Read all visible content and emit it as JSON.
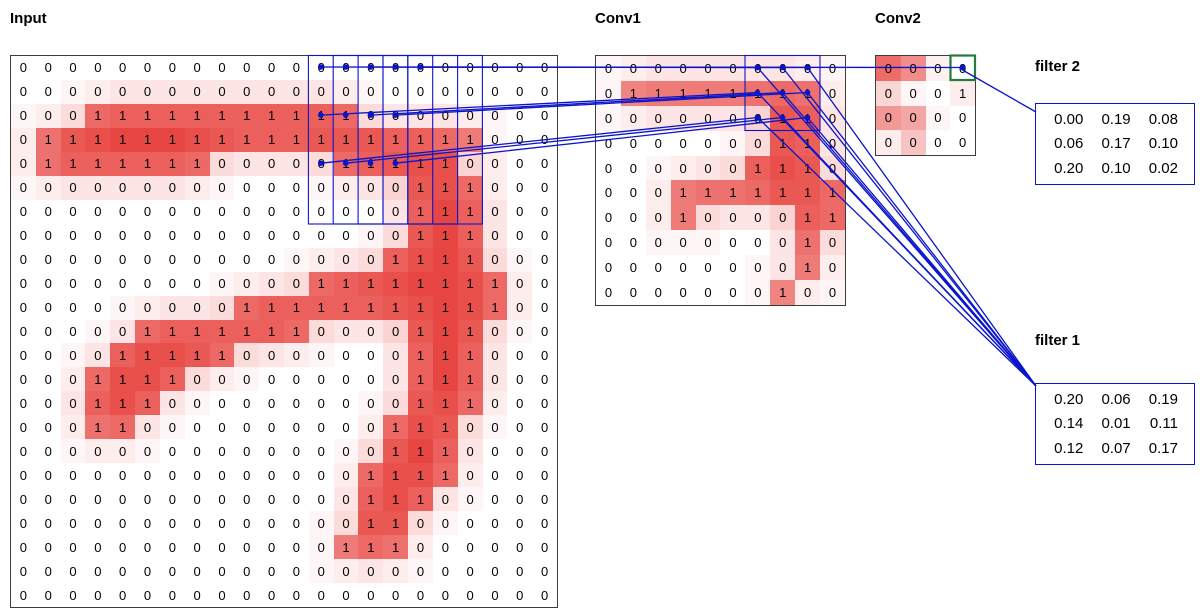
{
  "colors": {
    "accent_blue": "#0a14cc",
    "heat_red": "#e84642",
    "highlight_green": "#267a3e",
    "grid_border": "#3c3c3c"
  },
  "grids": {
    "input": {
      "label": "Input",
      "rows": 23,
      "cols": 22,
      "values": [
        "0000000000000000000000",
        "0000000000000000000000",
        "0001111111111100000000",
        "0111111111111111111000",
        "0111111100000111110000",
        "0000000000000000111000",
        "0000000000000000111000",
        "0000000000000000111000",
        "0000000000000001111000",
        "0000000000001111111100",
        "0000000001111111111100",
        "0000011111110000111000",
        "0000111110000000111000",
        "0001111000000000111000",
        "0001110000000000111000",
        "0001100000000001110000",
        "0000000000000001110000",
        "0000000000000011110000",
        "0000000000000011100000",
        "0000000000000011000000",
        "0000000000000111000000",
        "0000000000000000000000",
        "0000000000000000000000"
      ]
    },
    "conv1": {
      "label": "Conv1",
      "rows": 10,
      "cols": 10,
      "values": [
        "0000000000",
        "0111111110",
        "0000000110",
        "0000000110",
        "0000001110",
        "0001111111",
        "0001000011",
        "0000000010",
        "0000000010",
        "0000000100"
      ]
    },
    "conv2": {
      "label": "Conv2",
      "rows": 4,
      "cols": 4,
      "values": [
        "0000",
        "0001",
        "0000",
        "0000"
      ],
      "shades": [
        [
          0.8,
          0.62,
          0.08,
          0
        ],
        [
          0.22,
          0.05,
          0,
          0.1
        ],
        [
          0.55,
          0.48,
          0.05,
          0
        ],
        [
          0.1,
          0.32,
          0,
          0
        ]
      ]
    }
  },
  "filters": {
    "filter2": {
      "label": "filter 2",
      "values": [
        [
          "0.00",
          "0.19",
          "0.08"
        ],
        [
          "0.06",
          "0.17",
          "0.10"
        ],
        [
          "0.20",
          "0.10",
          "0.02"
        ]
      ]
    },
    "filter1": {
      "label": "filter 1",
      "values": [
        [
          "0.20",
          "0.06",
          "0.19"
        ],
        [
          "0.14",
          "0.01",
          "0.11"
        ],
        [
          "0.12",
          "0.07",
          "0.17"
        ]
      ]
    }
  }
}
